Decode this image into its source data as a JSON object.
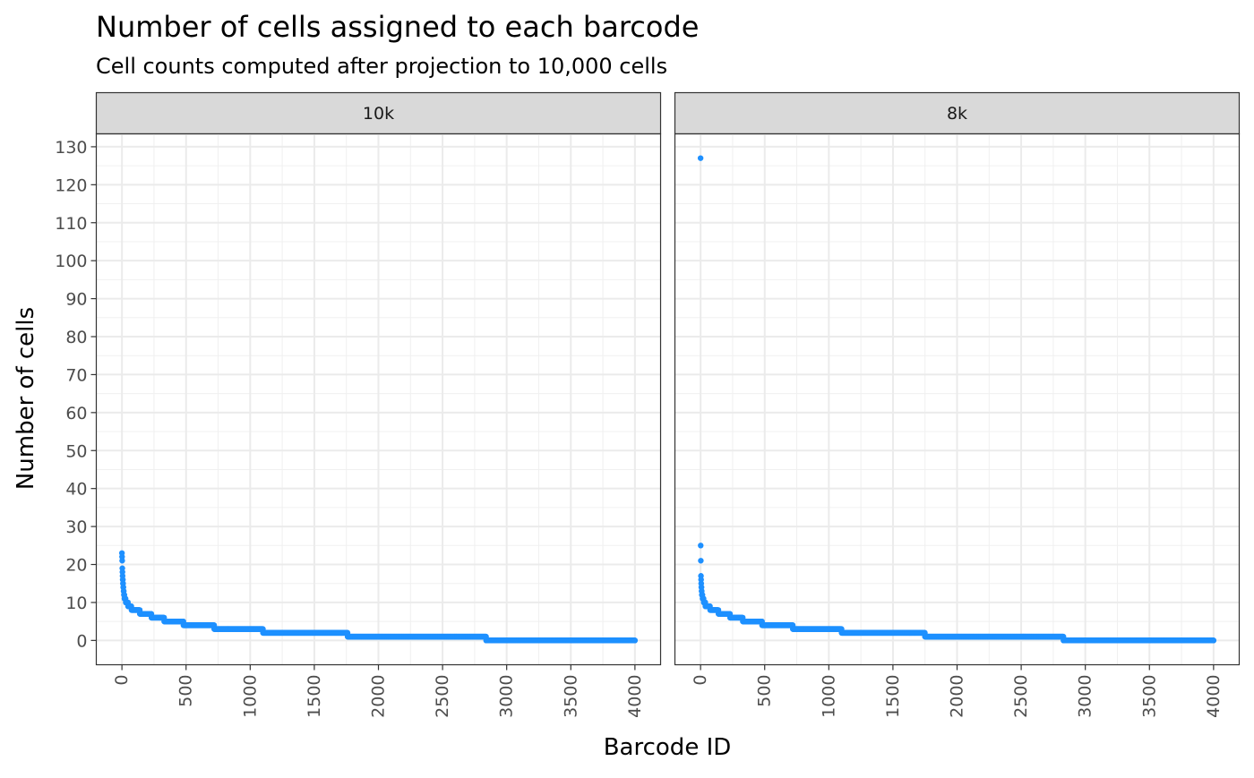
{
  "chart_data": {
    "type": "scatter",
    "title": "Number of cells assigned to each barcode",
    "subtitle": "Cell counts computed after projection to 10,000 cells",
    "xlabel": "Barcode ID",
    "ylabel": "Number of cells",
    "xlim": [
      -200,
      4200
    ],
    "ylim": [
      -6.4,
      133.4
    ],
    "x_ticks": [
      "0",
      "500",
      "1000",
      "1500",
      "2000",
      "2500",
      "3000",
      "3500",
      "4000"
    ],
    "y_ticks": [
      "0",
      "10",
      "20",
      "30",
      "40",
      "50",
      "60",
      "70",
      "80",
      "90",
      "100",
      "110",
      "120",
      "130"
    ],
    "grid": true,
    "point_color": "#1E90FF",
    "panels": [
      {
        "name": "10k",
        "series": [
          {
            "x": [
              0,
              1,
              2,
              3,
              4,
              5,
              6,
              8,
              10,
              13,
              16,
              20,
              25,
              30,
              38,
              48,
              60,
              75,
              90,
              110,
              140,
              180,
              230,
              300,
              330,
              400,
              480,
              720,
              1100,
              1760,
              2840,
              4000
            ],
            "y": [
              23,
              22,
              21,
              19,
              18,
              17,
              16,
              15,
              14,
              13,
              12,
              11,
              11,
              10,
              10,
              9,
              9,
              8,
              8,
              8,
              7,
              7,
              6,
              6,
              5,
              5,
              4,
              3,
              2,
              1,
              0,
              0
            ]
          }
        ]
      },
      {
        "name": "8k",
        "series": [
          {
            "x": [
              0,
              1,
              2,
              3,
              4,
              5,
              6,
              8,
              10,
              13,
              16,
              20,
              25,
              30,
              38,
              48,
              60,
              75,
              90,
              110,
              140,
              180,
              230,
              300,
              330,
              400,
              480,
              720,
              1100,
              1750,
              2830,
              4000
            ],
            "y": [
              127,
              25,
              21,
              17,
              16,
              15,
              14,
              13,
              12,
              12,
              11,
              11,
              10,
              10,
              9,
              9,
              9,
              8,
              8,
              8,
              7,
              7,
              6,
              6,
              5,
              5,
              4,
              3,
              2,
              1,
              0,
              0
            ]
          }
        ]
      }
    ]
  }
}
